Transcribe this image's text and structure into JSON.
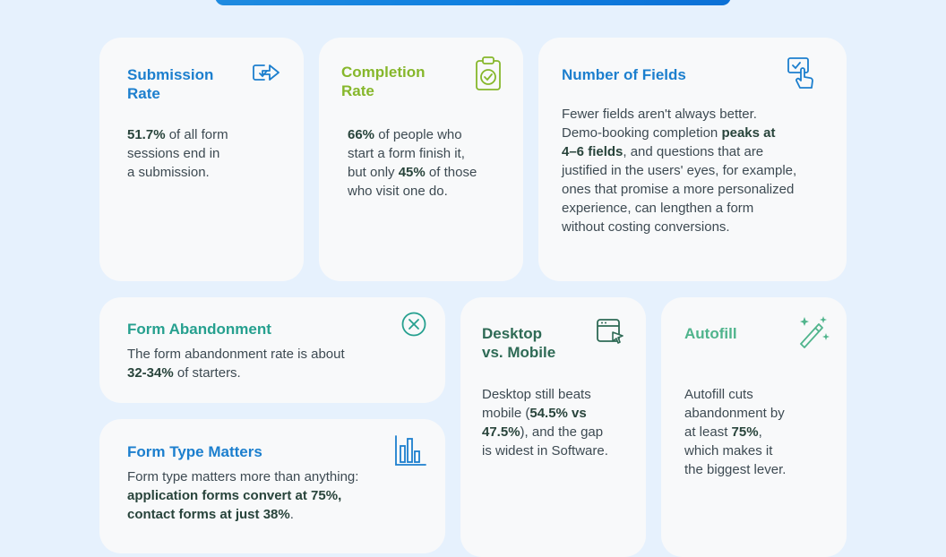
{
  "cards": {
    "submission": {
      "title_line1": "Submission",
      "title_line2": "Rate",
      "stat": "51.7%",
      "text_line1_rest": " of all form",
      "text_line2": "sessions end in",
      "text_line3": "a submission."
    },
    "completion": {
      "title_line1": "Completion",
      "title_line2": "Rate",
      "stat1": "66%",
      "text_line1_rest": " of people who",
      "text_line2": "start a form finish it,",
      "text_line3_pre": "but only ",
      "stat2": "45%",
      "text_line3_post": " of those",
      "text_line4": "who visit one do."
    },
    "fields": {
      "title": "Number of Fields",
      "line1": "Fewer fields aren't always better.",
      "line2_pre": "Demo-booking completion ",
      "line2_bold": "peaks at",
      "line3_bold": "4–6 fields",
      "line3_post": ", and questions that are",
      "line4": "justified in the users' eyes, for example,",
      "line5": "ones that promise a more personalized",
      "line6": "experience, can lengthen a form",
      "line7": "without costing conversions."
    },
    "abandonment": {
      "title": "Form Abandonment",
      "line1": "The form abandonment rate is about",
      "stat": "32-34%",
      "line2_post": " of starters."
    },
    "formtype": {
      "title": "Form Type Matters",
      "line1": "Form type matters more than anything:",
      "line2_bold": "application forms convert at 75%,",
      "line3_bold": "contact forms at just 38%",
      "line3_post": "."
    },
    "desktop": {
      "title_line1": "Desktop",
      "title_line2": "vs. Mobile",
      "line1": "Desktop still beats",
      "line2_pre": "mobile (",
      "line2_bold": "54.5% vs",
      "line3_bold": "47.5%",
      "line3_post": "), and the gap",
      "line4": "is widest in Software."
    },
    "autofill": {
      "title": "Autofill",
      "line1": "Autofill cuts",
      "line2": "abandonment by",
      "line3_pre": "at least ",
      "line3_bold": "75%",
      "line3_post": ",",
      "line4": "which makes it",
      "line5": "the biggest lever."
    }
  },
  "icons": {
    "submission": "send-arrow-check-icon",
    "completion": "clipboard-check-icon",
    "fields": "form-click-icon",
    "abandonment": "close-circle-icon",
    "formtype": "bar-chart-icon",
    "desktop": "browser-cursor-icon",
    "autofill": "magic-wand-icon"
  },
  "colors": {
    "background": "#e6f1fd",
    "card": "#f8f9fa",
    "blue_title": "#1c7fce",
    "green_title": "#86b72b",
    "teal_title": "#26a08f",
    "dark_green_title": "#2e6a55",
    "light_green_title": "#4fb48c"
  }
}
